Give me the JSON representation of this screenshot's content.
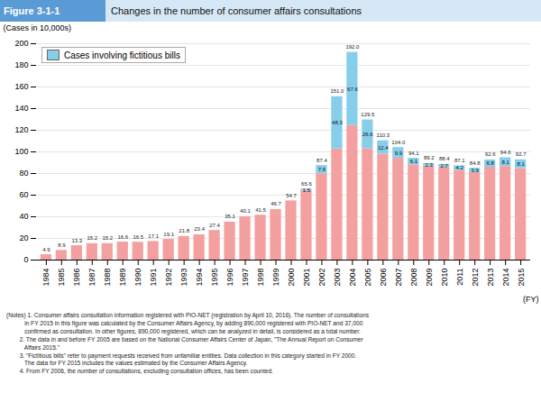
{
  "chart_data": {
    "type": "bar",
    "stacked": true,
    "figure_label": "Figure 3-1-1",
    "title": "Changes in the number of consumer affairs consultations",
    "ylabel": "(Cases in 10,000s)",
    "xlabel": "(FY)",
    "categories": [
      "1984",
      "1985",
      "1986",
      "1987",
      "1988",
      "1989",
      "1990",
      "1991",
      "1992",
      "1993",
      "1994",
      "1995",
      "1996",
      "1997",
      "1998",
      "1999",
      "2000",
      "2001",
      "2002",
      "2003",
      "2004",
      "2005",
      "2006",
      "2007",
      "2008",
      "2009",
      "2010",
      "2011",
      "2012",
      "2013",
      "2014",
      "2015"
    ],
    "series": [
      {
        "color": "#f4a0a0",
        "values": [
          4.9,
          8.9,
          13.3,
          15.2,
          15.2,
          16.6,
          16.5,
          17.1,
          19.1,
          21.8,
          23.4,
          27.4,
          35.1,
          40.1,
          41.5,
          46.7,
          54.7,
          64.1,
          79.8,
          102.7,
          124.4,
          102.9,
          97.9,
          94.1,
          88.0,
          86.9,
          85.7,
          82.9,
          80.9,
          85.8,
          86.5,
          84.6
        ]
      },
      {
        "name": "Cases involving fictitious bills",
        "color": "#87ceeb",
        "values": [
          0,
          0,
          0,
          0,
          0,
          0,
          0,
          0,
          0,
          0,
          0,
          0,
          0,
          0,
          0,
          0,
          0,
          1.5,
          7.6,
          48.3,
          67.6,
          26.6,
          12.4,
          9.9,
          6.1,
          2.3,
          2.7,
          4.2,
          3.9,
          6.8,
          8.1,
          8.1
        ],
        "value_labels": [
          null,
          null,
          null,
          null,
          null,
          null,
          null,
          null,
          null,
          null,
          null,
          null,
          null,
          null,
          null,
          null,
          null,
          "1.5",
          "7.6",
          "48.3",
          "67.6",
          "26.6",
          "12.4",
          "9.9",
          "6.1",
          "2.3",
          "2.7",
          "4.2",
          "3.9",
          "6.8",
          "8.1",
          "8.1"
        ]
      }
    ],
    "totals": [
      4.9,
      8.9,
      13.3,
      15.2,
      15.2,
      16.6,
      16.5,
      17.1,
      19.1,
      21.8,
      23.4,
      27.4,
      35.1,
      40.1,
      41.5,
      46.7,
      54.7,
      65.6,
      87.4,
      151.0,
      192.0,
      129.5,
      110.3,
      104.0,
      94.1,
      89.2,
      88.4,
      87.1,
      84.8,
      92.6,
      94.6,
      92.7
    ],
    "total_labels": [
      "4.9",
      "8.9",
      "13.3",
      "15.2",
      "15.2",
      "16.6",
      "16.5",
      "17.1",
      "19.1",
      "21.8",
      "23.4",
      "27.4",
      "35.1",
      "40.1",
      "41.5",
      "46.7",
      "54.7",
      "65.6",
      "87.4",
      "151.0",
      "192.0",
      "129.5",
      "110.3",
      "104.0",
      "94.1",
      "89.2",
      "88.4",
      "87.1",
      "84.8",
      "92.6",
      "94.6",
      "92.7"
    ],
    "data_labels": true,
    "ylim": [
      0,
      200
    ],
    "yticks": [
      0,
      20,
      40,
      60,
      80,
      100,
      120,
      140,
      160,
      180,
      200
    ],
    "grid": true,
    "legend": "upper left",
    "notes": [
      "(Notes) 1. Consumer affairs consultation information registered with PIO-NET (registration by April 10, 2016). The number of consultations",
      "           in FY 2015 in this figure was calculated by the Consumer Affairs Agency, by adding 890,000 registered with PIO-NET and 37,000",
      "           confirmed as consultation. In other figures, 890,000 registered, which can be analyzed in detail, is considered as a total number.",
      "        2. The data in and before FY 2005 are based on the National Consumer Affairs Center of Japan, \"The Annual Report on Consumer",
      "           Affairs 2015.\"",
      "        3. \"Fictitious bills\" refer to payment requests received from unfamiliar entities. Data collection in this category started in FY 2000.",
      "           The data for FY 2015 includes the values estimated by the Consumer Affairs Agency.",
      "        4. From FY 2006, the number of consultations, excluding consultation offices, has been counted."
    ]
  }
}
